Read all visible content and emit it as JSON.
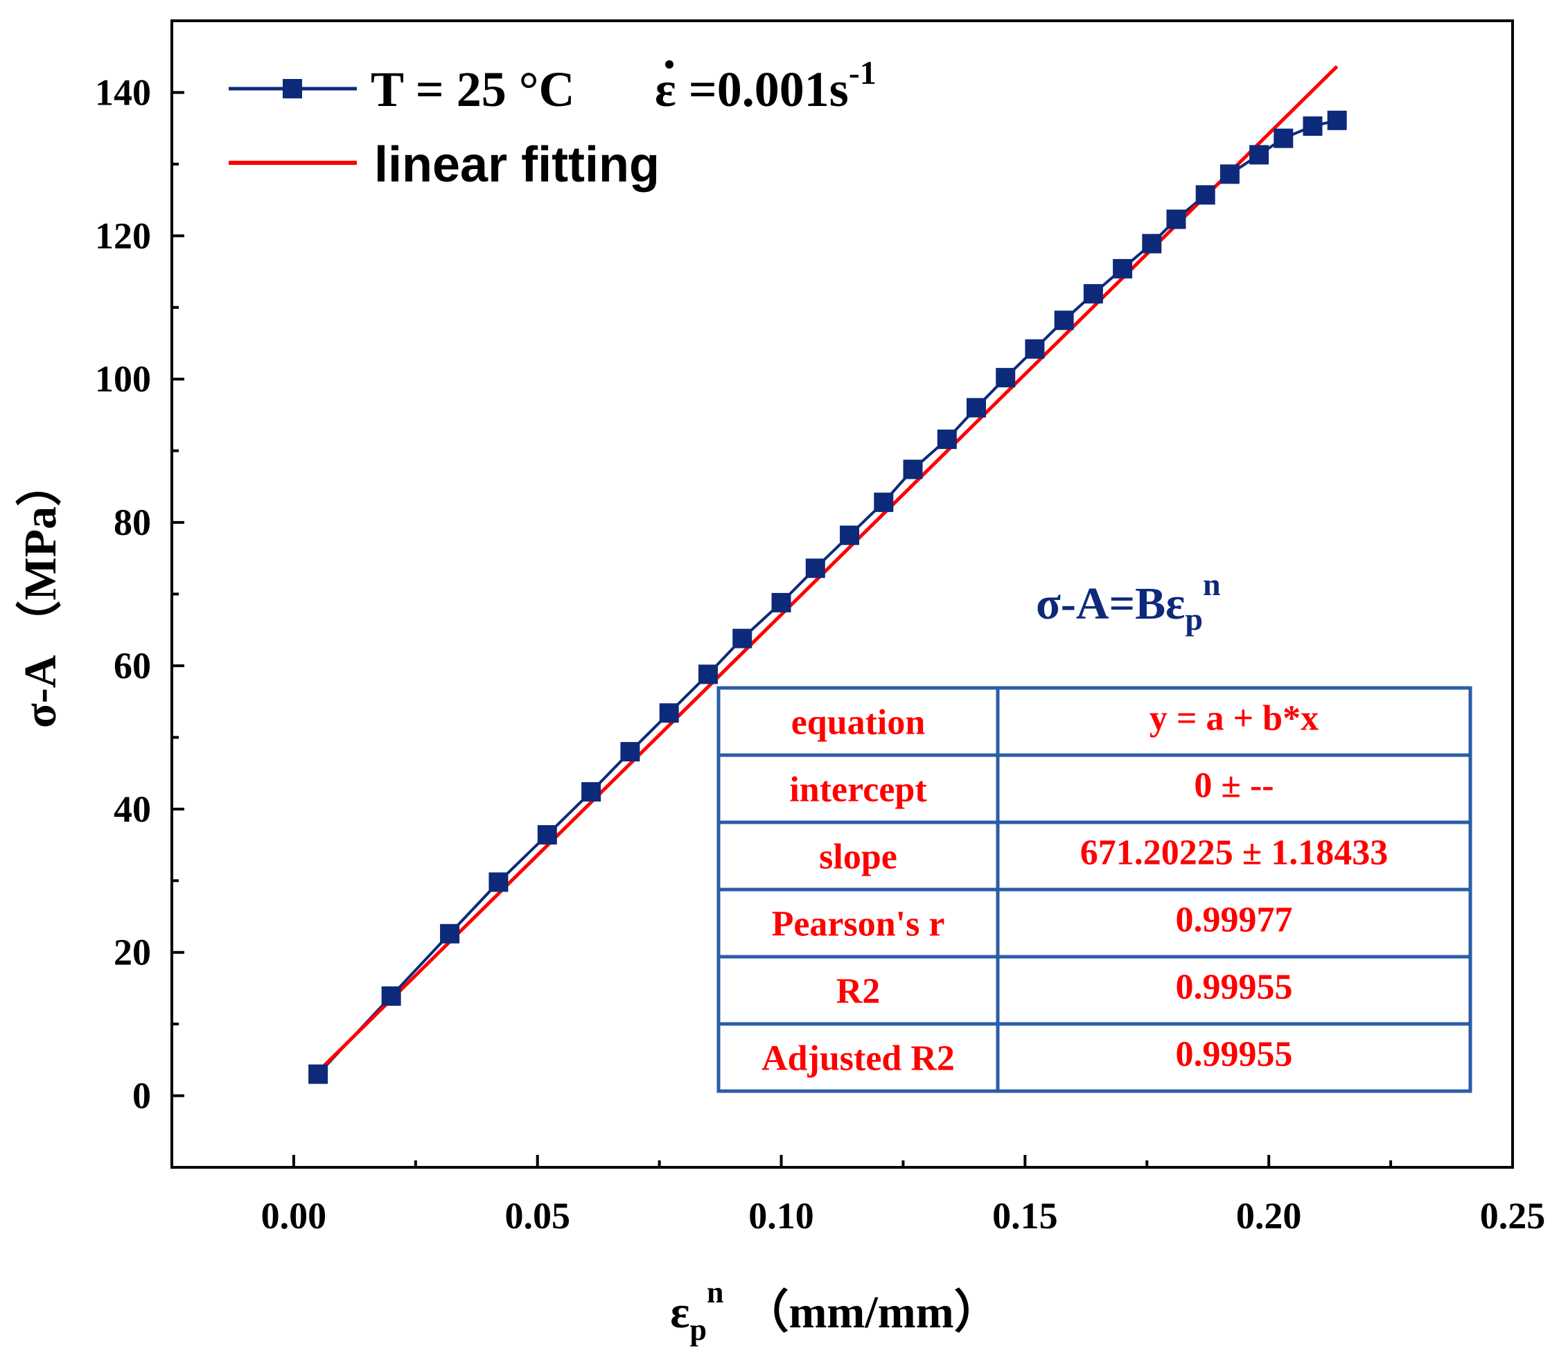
{
  "chart_data": {
    "type": "scatter",
    "xlabel": {
      "base": "ε",
      "sub": "p",
      "sup": "n",
      "unit": "（mm/mm）"
    },
    "ylabel": "σ-A （MPa）",
    "xlim": [
      -0.025,
      0.25
    ],
    "ylim": [
      -10,
      150
    ],
    "xticks": [
      "0.00",
      "0.05",
      "0.10",
      "0.15",
      "0.20",
      "0.25"
    ],
    "yticks": [
      "0",
      "20",
      "40",
      "60",
      "80",
      "100",
      "120",
      "140"
    ],
    "grid": false,
    "legend_position": "top-left",
    "series": [
      {
        "name": "T = 25 °C    ε =0.001s-1",
        "legend_label": {
          "main": "T = 25 °C",
          "rate": "ε =0.001s",
          "rate_sup": "-1"
        },
        "color": "#0d2a7a",
        "marker": "square",
        "x": [
          0.005,
          0.02,
          0.032,
          0.042,
          0.052,
          0.061,
          0.069,
          0.077,
          0.085,
          0.092,
          0.1,
          0.107,
          0.114,
          0.121,
          0.127,
          0.134,
          0.14,
          0.146,
          0.152,
          0.158,
          0.164,
          0.17,
          0.176,
          0.181,
          0.187,
          0.192,
          0.198,
          0.203,
          0.209,
          0.214
        ],
        "y": [
          3.0,
          13.9,
          22.6,
          29.8,
          36.4,
          42.4,
          48.0,
          53.4,
          58.8,
          63.8,
          68.8,
          73.6,
          78.2,
          82.8,
          87.4,
          91.6,
          96.0,
          100.2,
          104.2,
          108.2,
          111.9,
          115.4,
          118.9,
          122.3,
          125.7,
          128.6,
          131.3,
          133.6,
          135.3,
          136.1
        ]
      },
      {
        "name": "linear fitting",
        "color": "#ff0000",
        "marker": "none",
        "x": [
          0.005,
          0.214
        ],
        "y": [
          3.36,
          143.64
        ]
      }
    ],
    "annotations": {
      "formula": {
        "base": "σ-A=Bε",
        "sub": "p",
        "sup": "n"
      },
      "stats_table": [
        [
          "equation",
          "y = a + b*x"
        ],
        [
          "intercept",
          "0 ± --"
        ],
        [
          "slope",
          "671.20225 ± 1.18433"
        ],
        [
          "Pearson's r",
          "0.99977"
        ],
        [
          "R2",
          "0.99955"
        ],
        [
          "Adjusted R2",
          "0.99955"
        ]
      ]
    }
  }
}
